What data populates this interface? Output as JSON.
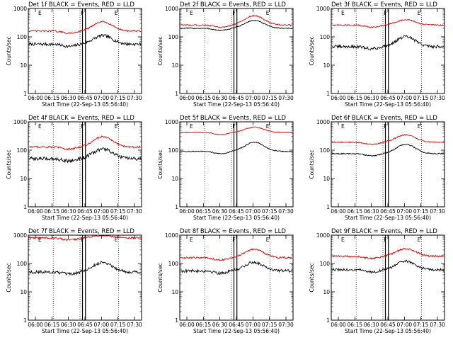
{
  "chart_data": [
    {
      "type": "line",
      "title": "Det 1f BLACK = Events, RED = LLD",
      "xlabel": "Start Time (22-Sep-13 05:56:40)",
      "ylabel": "Counts/sec",
      "yscale": "log",
      "ylim": [
        1,
        1000
      ],
      "ytick_labels": [
        "1",
        "10",
        "100",
        "1000"
      ],
      "xtick_labels": [
        "06:00",
        "06:15",
        "06:30",
        "06:45",
        "07:00",
        "07:15",
        "07:30"
      ],
      "markers": [
        "E",
        "F",
        "E"
      ],
      "series": [
        {
          "name": "BLACK = Events",
          "color": "#000000",
          "base": 55,
          "peak": 110,
          "ripple": 0.12
        },
        {
          "name": "RED = LLD",
          "color": "#e00000",
          "base": 160,
          "peak": 340,
          "ripple": 0.06
        }
      ]
    },
    {
      "type": "line",
      "title": "Det 2f BLACK = Events, RED = LLD",
      "xlabel": "Start Time (22-Sep-13 05:56:40)",
      "ylabel": "Counts/sec",
      "yscale": "log",
      "ylim": [
        1,
        1000
      ],
      "ytick_labels": [
        "1",
        "10",
        "100",
        "1000"
      ],
      "xtick_labels": [
        "06:00",
        "06:15",
        "06:30",
        "06:45",
        "07:00",
        "07:15",
        "07:30"
      ],
      "markers": [
        "E",
        "F",
        "E"
      ],
      "series": [
        {
          "name": "BLACK = Events",
          "color": "#000000",
          "base": 200,
          "peak": 380,
          "ripple": 0.04
        },
        {
          "name": "RED = LLD",
          "color": "#e00000",
          "base": 260,
          "peak": 560,
          "ripple": 0.05
        }
      ]
    },
    {
      "type": "line",
      "title": "Det 3f BLACK = Events, RED = LLD",
      "xlabel": "Start Time (22-Sep-13 05:56:40)",
      "ylabel": "Counts/sec",
      "yscale": "log",
      "ylim": [
        1,
        1000
      ],
      "ytick_labels": [
        "1",
        "10",
        "100",
        "1000"
      ],
      "xtick_labels": [
        "06:00",
        "06:15",
        "06:30",
        "06:45",
        "07:00",
        "07:15",
        "07:30"
      ],
      "markers": [
        "E",
        "F",
        "E"
      ],
      "series": [
        {
          "name": "BLACK = Events",
          "color": "#000000",
          "base": 45,
          "peak": 100,
          "ripple": 0.12
        },
        {
          "name": "RED = LLD",
          "color": "#e00000",
          "base": 260,
          "peak": 400,
          "ripple": 0.05
        }
      ]
    },
    {
      "type": "line",
      "title": "Det 4f BLACK = Events, RED = LLD",
      "xlabel": "Start Time (22-Sep-13 05:56:40)",
      "ylabel": "Counts/sec",
      "yscale": "log",
      "ylim": [
        1,
        1000
      ],
      "ytick_labels": [
        "1",
        "10",
        "100",
        "1000"
      ],
      "xtick_labels": [
        "06:00",
        "06:15",
        "06:30",
        "06:45",
        "07:00",
        "07:15",
        "07:30"
      ],
      "markers": [
        "E",
        "F",
        "E"
      ],
      "series": [
        {
          "name": "BLACK = Events",
          "color": "#000000",
          "base": 50,
          "peak": 110,
          "ripple": 0.14
        },
        {
          "name": "RED = LLD",
          "color": "#e00000",
          "base": 130,
          "peak": 300,
          "ripple": 0.07
        }
      ]
    },
    {
      "type": "line",
      "title": "Det 5f BLACK = Events, RED = LLD",
      "xlabel": "Start Time (22-Sep-13 05:56:40)",
      "ylabel": "Counts/sec",
      "yscale": "log",
      "ylim": [
        1,
        1000
      ],
      "ytick_labels": [
        "1",
        "10",
        "100",
        "1000"
      ],
      "xtick_labels": [
        "06:00",
        "06:15",
        "06:30",
        "06:45",
        "07:00",
        "07:15",
        "07:30"
      ],
      "markers": [
        "E",
        "F",
        "E"
      ],
      "series": [
        {
          "name": "BLACK = Events",
          "color": "#000000",
          "base": 90,
          "peak": 190,
          "ripple": 0.04
        },
        {
          "name": "RED = LLD",
          "color": "#e00000",
          "base": 420,
          "peak": 650,
          "ripple": 0.03
        }
      ]
    },
    {
      "type": "line",
      "title": "Det 6f BLACK = Events, RED = LLD",
      "xlabel": "Start Time (22-Sep-13 05:56:40)",
      "ylabel": "Counts/sec",
      "yscale": "log",
      "ylim": [
        1,
        1000
      ],
      "ytick_labels": [
        "1",
        "10",
        "100",
        "1000"
      ],
      "xtick_labels": [
        "06:00",
        "06:15",
        "06:30",
        "06:45",
        "07:00",
        "07:15",
        "07:30"
      ],
      "markers": [
        "E",
        "F",
        "E"
      ],
      "series": [
        {
          "name": "BLACK = Events",
          "color": "#000000",
          "base": 75,
          "peak": 160,
          "ripple": 0.05
        },
        {
          "name": "RED = LLD",
          "color": "#e00000",
          "base": 190,
          "peak": 350,
          "ripple": 0.04
        }
      ]
    },
    {
      "type": "line",
      "title": "Det 7f BLACK = Events, RED = LLD",
      "xlabel": "Start Time (22-Sep-13 05:56:40)",
      "ylabel": "Counts/sec",
      "yscale": "log",
      "ylim": [
        1,
        1000
      ],
      "ytick_labels": [
        "1",
        "10",
        "100",
        "1000"
      ],
      "xtick_labels": [
        "06:00",
        "06:15",
        "06:30",
        "06:45",
        "07:00",
        "07:15",
        "07:30"
      ],
      "markers": [
        "E",
        "F",
        "E"
      ],
      "series": [
        {
          "name": "BLACK = Events",
          "color": "#000000",
          "base": 50,
          "peak": 110,
          "ripple": 0.12
        },
        {
          "name": "RED = LLD",
          "color": "#e00000",
          "base": 800,
          "peak": 1000,
          "ripple": 0.08
        }
      ]
    },
    {
      "type": "line",
      "title": "Det 8f BLACK = Events, RED = LLD",
      "xlabel": "Start Time (22-Sep-13 05:56:40)",
      "ylabel": "Counts/sec",
      "yscale": "log",
      "ylim": [
        1,
        1000
      ],
      "ytick_labels": [
        "1",
        "10",
        "100",
        "1000"
      ],
      "xtick_labels": [
        "06:00",
        "06:15",
        "06:30",
        "06:45",
        "07:00",
        "07:15",
        "07:30"
      ],
      "markers": [
        "E",
        "F",
        "E"
      ],
      "series": [
        {
          "name": "BLACK = Events",
          "color": "#000000",
          "base": 55,
          "peak": 110,
          "ripple": 0.12
        },
        {
          "name": "RED = LLD",
          "color": "#e00000",
          "base": 160,
          "peak": 320,
          "ripple": 0.07
        }
      ]
    },
    {
      "type": "line",
      "title": "Det 9f BLACK = Events, RED = LLD",
      "xlabel": "Start Time (22-Sep-13 05:56:40)",
      "ylabel": "Counts/sec",
      "yscale": "log",
      "ylim": [
        1,
        1000
      ],
      "ytick_labels": [
        "1",
        "10",
        "100",
        "1000"
      ],
      "xtick_labels": [
        "06:00",
        "06:15",
        "06:30",
        "06:45",
        "07:00",
        "07:15",
        "07:30"
      ],
      "markers": [
        "E",
        "F",
        "E"
      ],
      "series": [
        {
          "name": "BLACK = Events",
          "color": "#000000",
          "base": 60,
          "peak": 120,
          "ripple": 0.1
        },
        {
          "name": "RED = LLD",
          "color": "#e00000",
          "base": 180,
          "peak": 330,
          "ripple": 0.07
        }
      ]
    }
  ]
}
